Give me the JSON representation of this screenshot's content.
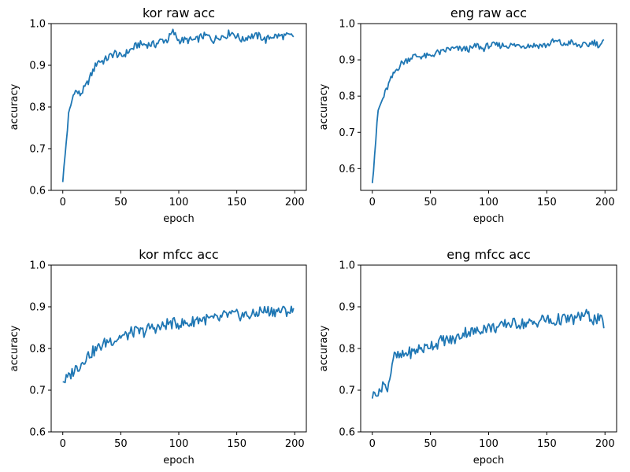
{
  "chart_data": [
    {
      "type": "line",
      "title": "kor raw acc",
      "xlabel": "epoch",
      "ylabel": "accuracy",
      "xlim": [
        -10,
        210
      ],
      "ylim": [
        0.6,
        1.0
      ],
      "xticks": [
        "0",
        "50",
        "100",
        "150",
        "200"
      ],
      "yticks": [
        "0.6",
        "0.7",
        "0.8",
        "0.9",
        "1.0"
      ],
      "line_color": "#1f77b4",
      "x": [
        0,
        5,
        10,
        15,
        20,
        25,
        30,
        35,
        40,
        45,
        50,
        55,
        60,
        65,
        70,
        75,
        80,
        85,
        90,
        95,
        100,
        105,
        110,
        115,
        120,
        125,
        130,
        135,
        140,
        145,
        150,
        155,
        160,
        165,
        170,
        175,
        180,
        185,
        190,
        195,
        199
      ],
      "y": [
        0.62,
        0.78,
        0.84,
        0.83,
        0.85,
        0.88,
        0.91,
        0.91,
        0.92,
        0.93,
        0.92,
        0.93,
        0.94,
        0.95,
        0.95,
        0.95,
        0.95,
        0.96,
        0.96,
        0.98,
        0.96,
        0.96,
        0.96,
        0.96,
        0.97,
        0.97,
        0.96,
        0.97,
        0.97,
        0.98,
        0.97,
        0.96,
        0.97,
        0.97,
        0.97,
        0.96,
        0.97,
        0.97,
        0.97,
        0.97,
        0.97
      ]
    },
    {
      "type": "line",
      "title": "eng raw acc",
      "xlabel": "epoch",
      "ylabel": "accuracy",
      "xlim": [
        -10,
        210
      ],
      "ylim": [
        0.54,
        1.0
      ],
      "xticks": [
        "0",
        "50",
        "100",
        "150",
        "200"
      ],
      "yticks": [
        "0.6",
        "0.7",
        "0.8",
        "0.9",
        "1.0"
      ],
      "line_color": "#1f77b4",
      "x": [
        0,
        5,
        10,
        15,
        20,
        25,
        30,
        35,
        40,
        45,
        50,
        55,
        60,
        65,
        70,
        75,
        80,
        85,
        90,
        95,
        100,
        105,
        110,
        115,
        120,
        125,
        130,
        135,
        140,
        145,
        150,
        155,
        160,
        165,
        170,
        175,
        180,
        185,
        190,
        195,
        199
      ],
      "y": [
        0.56,
        0.76,
        0.8,
        0.84,
        0.87,
        0.89,
        0.9,
        0.91,
        0.91,
        0.91,
        0.91,
        0.92,
        0.92,
        0.93,
        0.93,
        0.93,
        0.93,
        0.93,
        0.94,
        0.93,
        0.94,
        0.94,
        0.94,
        0.94,
        0.94,
        0.94,
        0.94,
        0.94,
        0.94,
        0.94,
        0.94,
        0.95,
        0.95,
        0.94,
        0.95,
        0.94,
        0.94,
        0.94,
        0.95,
        0.94,
        0.95
      ]
    },
    {
      "type": "line",
      "title": "kor mfcc acc",
      "xlabel": "epoch",
      "ylabel": "accuracy",
      "xlim": [
        -10,
        210
      ],
      "ylim": [
        0.6,
        1.0
      ],
      "xticks": [
        "0",
        "50",
        "100",
        "150",
        "200"
      ],
      "yticks": [
        "0.6",
        "0.7",
        "0.8",
        "0.9",
        "1.0"
      ],
      "line_color": "#1f77b4",
      "x": [
        0,
        5,
        10,
        15,
        20,
        25,
        30,
        35,
        40,
        45,
        50,
        55,
        60,
        65,
        70,
        75,
        80,
        85,
        90,
        95,
        100,
        105,
        110,
        115,
        120,
        125,
        130,
        135,
        140,
        145,
        150,
        155,
        160,
        165,
        170,
        175,
        180,
        185,
        190,
        195,
        199
      ],
      "y": [
        0.72,
        0.73,
        0.75,
        0.76,
        0.78,
        0.79,
        0.8,
        0.81,
        0.82,
        0.82,
        0.83,
        0.83,
        0.84,
        0.84,
        0.84,
        0.85,
        0.85,
        0.85,
        0.86,
        0.86,
        0.86,
        0.86,
        0.86,
        0.87,
        0.87,
        0.87,
        0.87,
        0.87,
        0.88,
        0.88,
        0.88,
        0.88,
        0.88,
        0.88,
        0.89,
        0.89,
        0.89,
        0.89,
        0.89,
        0.89,
        0.89
      ]
    },
    {
      "type": "line",
      "title": "eng mfcc acc",
      "xlabel": "epoch",
      "ylabel": "accuracy",
      "xlim": [
        -10,
        210
      ],
      "ylim": [
        0.6,
        1.0
      ],
      "xticks": [
        "0",
        "50",
        "100",
        "150",
        "200"
      ],
      "yticks": [
        "0.6",
        "0.7",
        "0.8",
        "0.9",
        "1.0"
      ],
      "line_color": "#1f77b4",
      "x": [
        0,
        3,
        6,
        9,
        12,
        15,
        18,
        20,
        25,
        30,
        35,
        40,
        45,
        50,
        55,
        60,
        65,
        70,
        75,
        80,
        85,
        90,
        95,
        100,
        105,
        110,
        115,
        120,
        125,
        130,
        135,
        140,
        145,
        150,
        155,
        160,
        165,
        170,
        175,
        180,
        185,
        190,
        195,
        199
      ],
      "y": [
        0.68,
        0.7,
        0.69,
        0.72,
        0.7,
        0.73,
        0.78,
        0.78,
        0.78,
        0.79,
        0.79,
        0.8,
        0.8,
        0.81,
        0.81,
        0.82,
        0.82,
        0.82,
        0.83,
        0.84,
        0.84,
        0.84,
        0.85,
        0.85,
        0.85,
        0.85,
        0.86,
        0.86,
        0.86,
        0.86,
        0.86,
        0.86,
        0.87,
        0.87,
        0.86,
        0.87,
        0.87,
        0.87,
        0.87,
        0.88,
        0.88,
        0.87,
        0.87,
        0.86
      ]
    }
  ]
}
